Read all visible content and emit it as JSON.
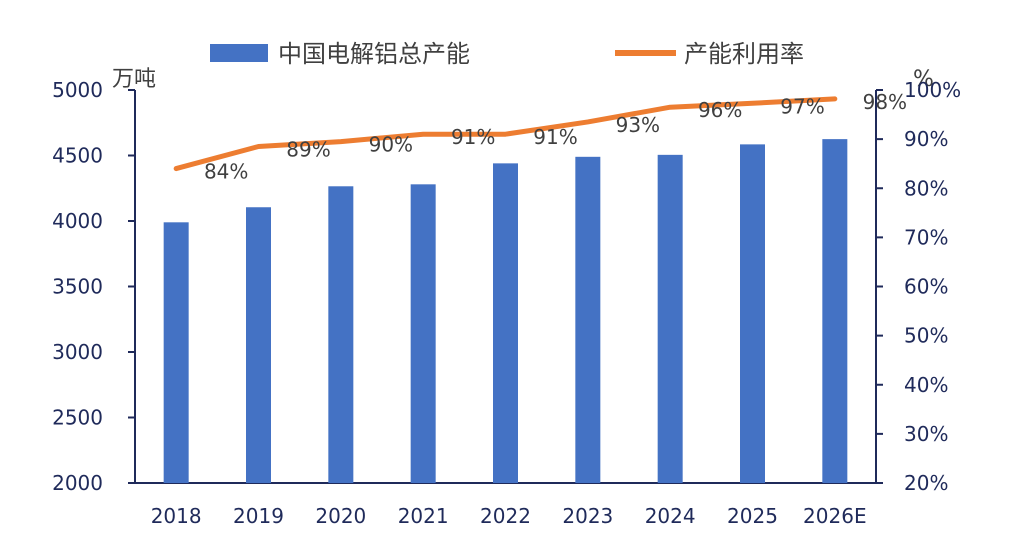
{
  "chart_data": {
    "type": "bar+line",
    "categories": [
      "2018",
      "2019",
      "2020",
      "2021",
      "2022",
      "2023",
      "2024",
      "2025",
      "2026E"
    ],
    "series": [
      {
        "name": "中国电解铝总产能",
        "type": "bar",
        "axis": "left",
        "color": "#4472c4",
        "values": [
          3990,
          4105,
          4265,
          4280,
          4440,
          4490,
          4505,
          4585,
          4625
        ]
      },
      {
        "name": "产能利用率",
        "type": "line",
        "axis": "right",
        "color": "#ed7d31",
        "values": [
          84,
          89,
          90,
          91,
          91,
          93,
          96,
          97,
          98
        ],
        "plot_values": [
          84,
          88.5,
          89.5,
          91,
          91,
          93.5,
          96.5,
          97.3,
          98.2
        ],
        "data_labels": [
          "84%",
          "89%",
          "90%",
          "91%",
          "91%",
          "93%",
          "96%",
          "97%",
          "98%"
        ]
      }
    ],
    "y_left": {
      "unit": "万吨",
      "ylim": [
        2000,
        5000
      ],
      "ticks": [
        "2000",
        "2500",
        "3000",
        "3500",
        "4000",
        "4500",
        "5000"
      ]
    },
    "y_right": {
      "unit": "%",
      "ylim": [
        20,
        100
      ],
      "ticks": [
        "20%",
        "30%",
        "40%",
        "50%",
        "60%",
        "70%",
        "80%",
        "90%",
        "100%"
      ]
    },
    "legend_position": "top",
    "grid": false
  },
  "colors": {
    "axis": "#1f2a5a",
    "text": "#404040",
    "bar": "#4472c4",
    "line": "#ed7d31"
  }
}
